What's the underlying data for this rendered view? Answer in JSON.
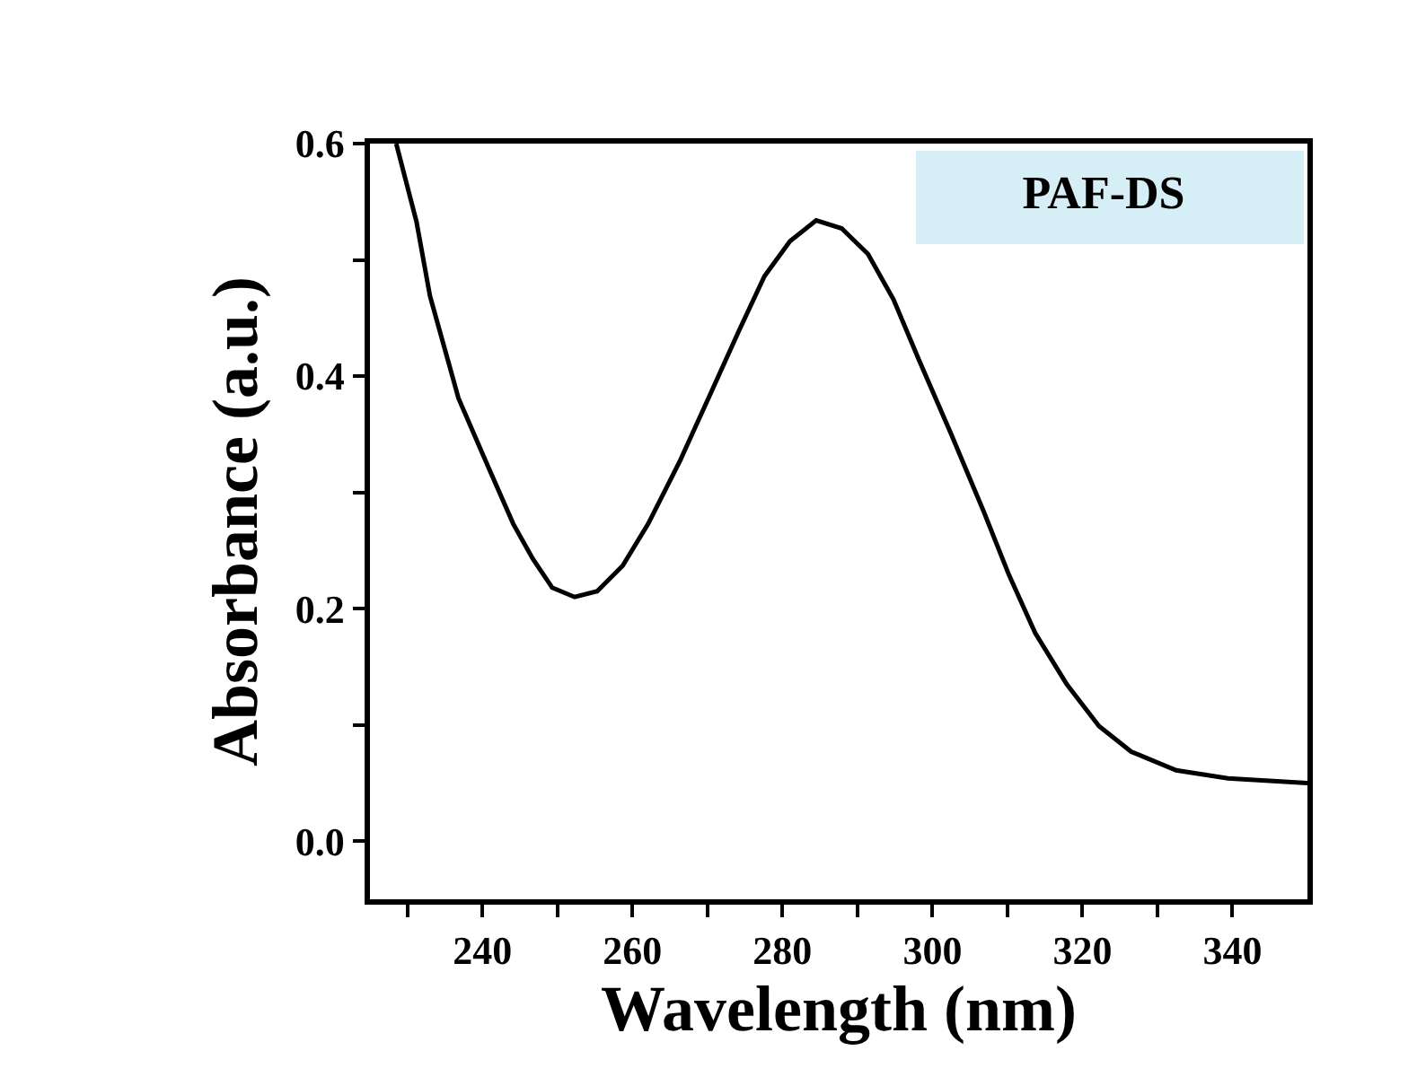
{
  "chart_data": {
    "type": "line",
    "xlabel": "Wavelength (nm)",
    "ylabel": "Absorbance (a.u.)",
    "annotations": [
      "PAF-DS"
    ],
    "x": [
      228.5,
      231.2,
      233.0,
      236.8,
      241.1,
      244.1,
      246.7,
      249.3,
      252.3,
      255.3,
      258.7,
      262.1,
      266.4,
      270.7,
      274.2,
      277.6,
      281.0,
      284.5,
      287.9,
      291.4,
      294.8,
      298.2,
      302.5,
      306.8,
      310.2,
      313.7,
      317.9,
      322.2,
      326.5,
      332.5,
      339.4,
      350
    ],
    "series": [
      {
        "color": "#000000",
        "values": [
          0.6,
          0.533,
          0.469,
          0.381,
          0.317,
          0.273,
          0.243,
          0.218,
          0.21,
          0.215,
          0.237,
          0.273,
          0.328,
          0.389,
          0.439,
          0.486,
          0.516,
          0.534,
          0.527,
          0.505,
          0.466,
          0.414,
          0.35,
          0.284,
          0.229,
          0.179,
          0.135,
          0.099,
          0.077,
          0.061,
          0.054,
          0.05
        ]
      }
    ],
    "xlim": [
      225,
      350
    ],
    "xticks": [
      {
        "value": 230,
        "label": null
      },
      240,
      {
        "value": 250,
        "label": null
      },
      260,
      {
        "value": 270,
        "label": null
      },
      280,
      {
        "value": 290,
        "label": null
      },
      300,
      {
        "value": 310,
        "label": null
      },
      320,
      {
        "value": 330,
        "label": null
      },
      340
    ],
    "ylim": [
      -0.05,
      0.6
    ],
    "yticks": [
      {
        "value": 0,
        "label": "0.0"
      },
      {
        "value": 0.1,
        "label": null
      },
      {
        "value": 0.2,
        "label": "0.2"
      },
      {
        "value": 0.3,
        "label": null
      },
      {
        "value": 0.4,
        "label": "0.4"
      },
      {
        "value": 0.5,
        "label": null
      },
      {
        "value": 0.6,
        "label": "0.6"
      }
    ],
    "grid": false,
    "marker": "none",
    "line_style": "solid"
  }
}
